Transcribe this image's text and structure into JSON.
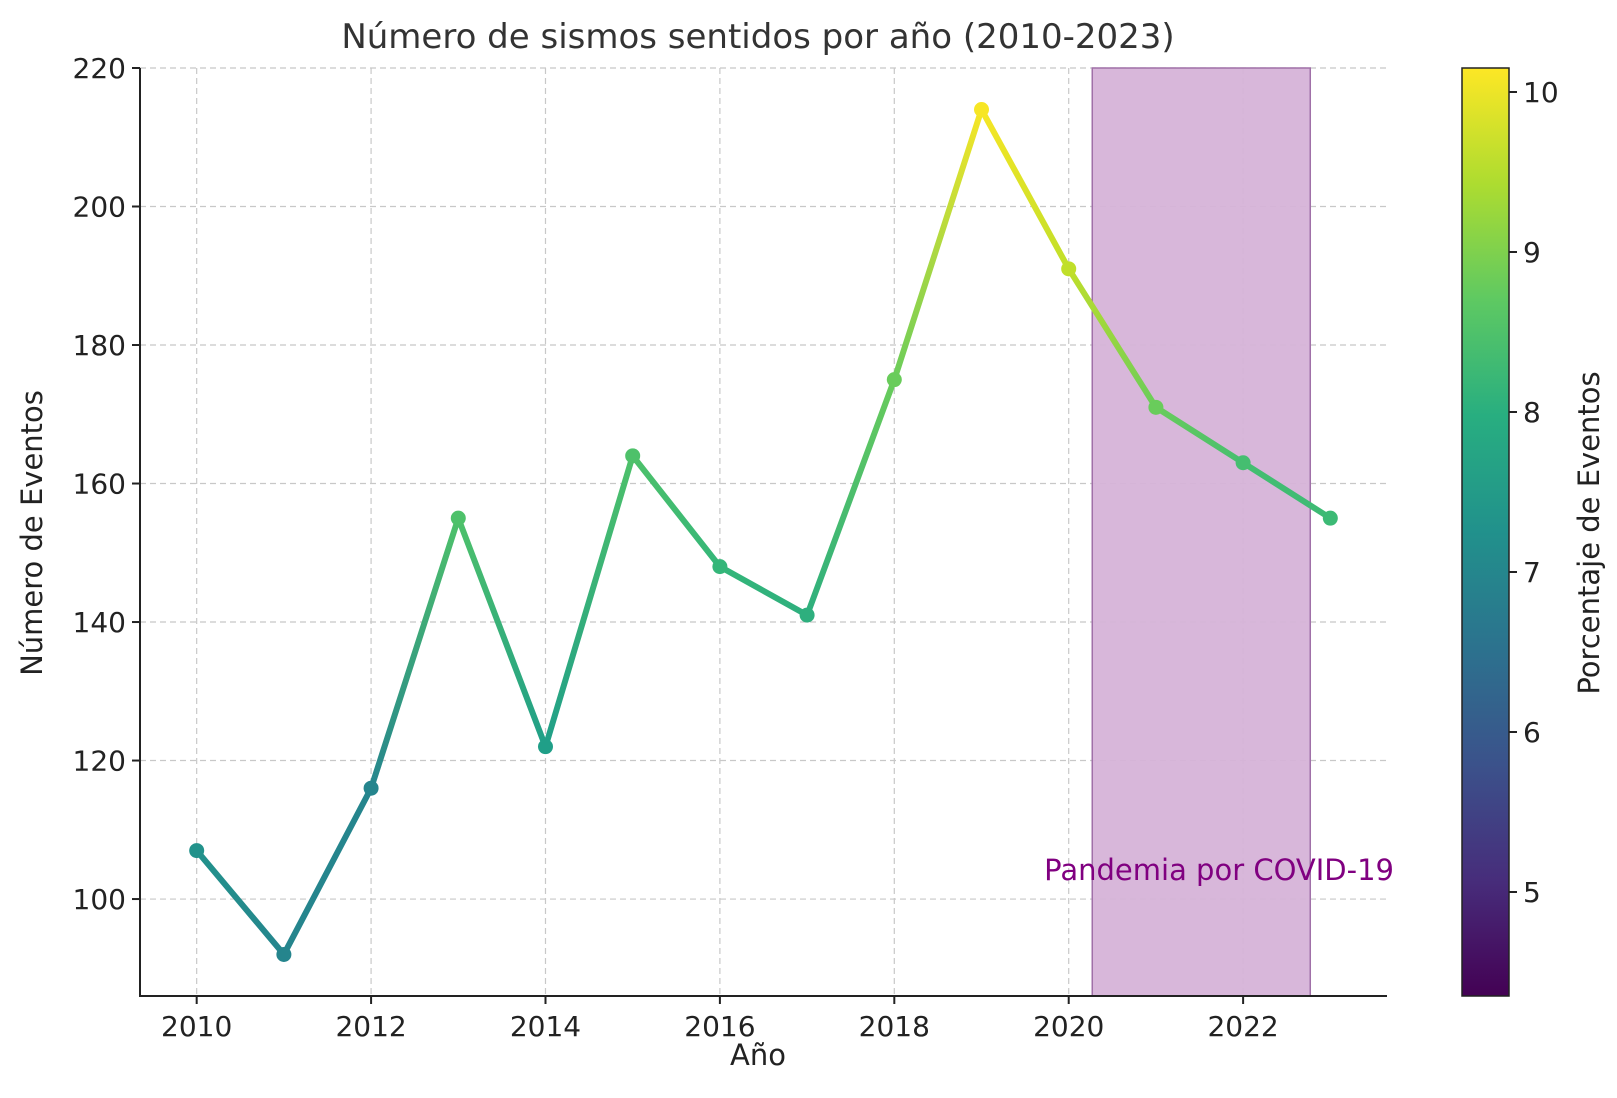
{
  "chart_data": {
    "type": "line",
    "title": "Número de sismos sentidos por año (2010-2023)",
    "xlabel": "Año",
    "ylabel": "Número de Eventos",
    "xlim": [
      2009.35,
      2023.65
    ],
    "ylim": [
      86,
      220
    ],
    "x_ticks": [
      2010,
      2012,
      2014,
      2016,
      2018,
      2020,
      2022
    ],
    "y_ticks": [
      100,
      120,
      140,
      160,
      180,
      200,
      220
    ],
    "grid": true,
    "x": [
      2010,
      2011,
      2012,
      2013,
      2014,
      2015,
      2016,
      2017,
      2018,
      2019,
      2020,
      2021,
      2022,
      2023
    ],
    "series": [
      {
        "values": [
          107,
          92,
          116,
          155,
          122,
          164,
          148,
          141,
          175,
          214,
          191,
          171,
          163,
          155
        ],
        "color_values": [
          7.3,
          7.0,
          7.0,
          8.5,
          7.6,
          8.5,
          8.2,
          8.0,
          8.8,
          10.1,
          9.6,
          8.8,
          8.4,
          8.3
        ]
      }
    ],
    "colorbar": {
      "label": "Porcentaje de Eventos",
      "range": [
        4.35,
        10.15
      ],
      "ticks": [
        5,
        6,
        7,
        8,
        9,
        10
      ],
      "colormap": "viridis"
    },
    "shaded_region": {
      "x_range": [
        2020.27,
        2022.77
      ],
      "label": "Pandemia por COVID-19",
      "fill_color": "#d6b3d8",
      "label_color": "#800080"
    }
  }
}
